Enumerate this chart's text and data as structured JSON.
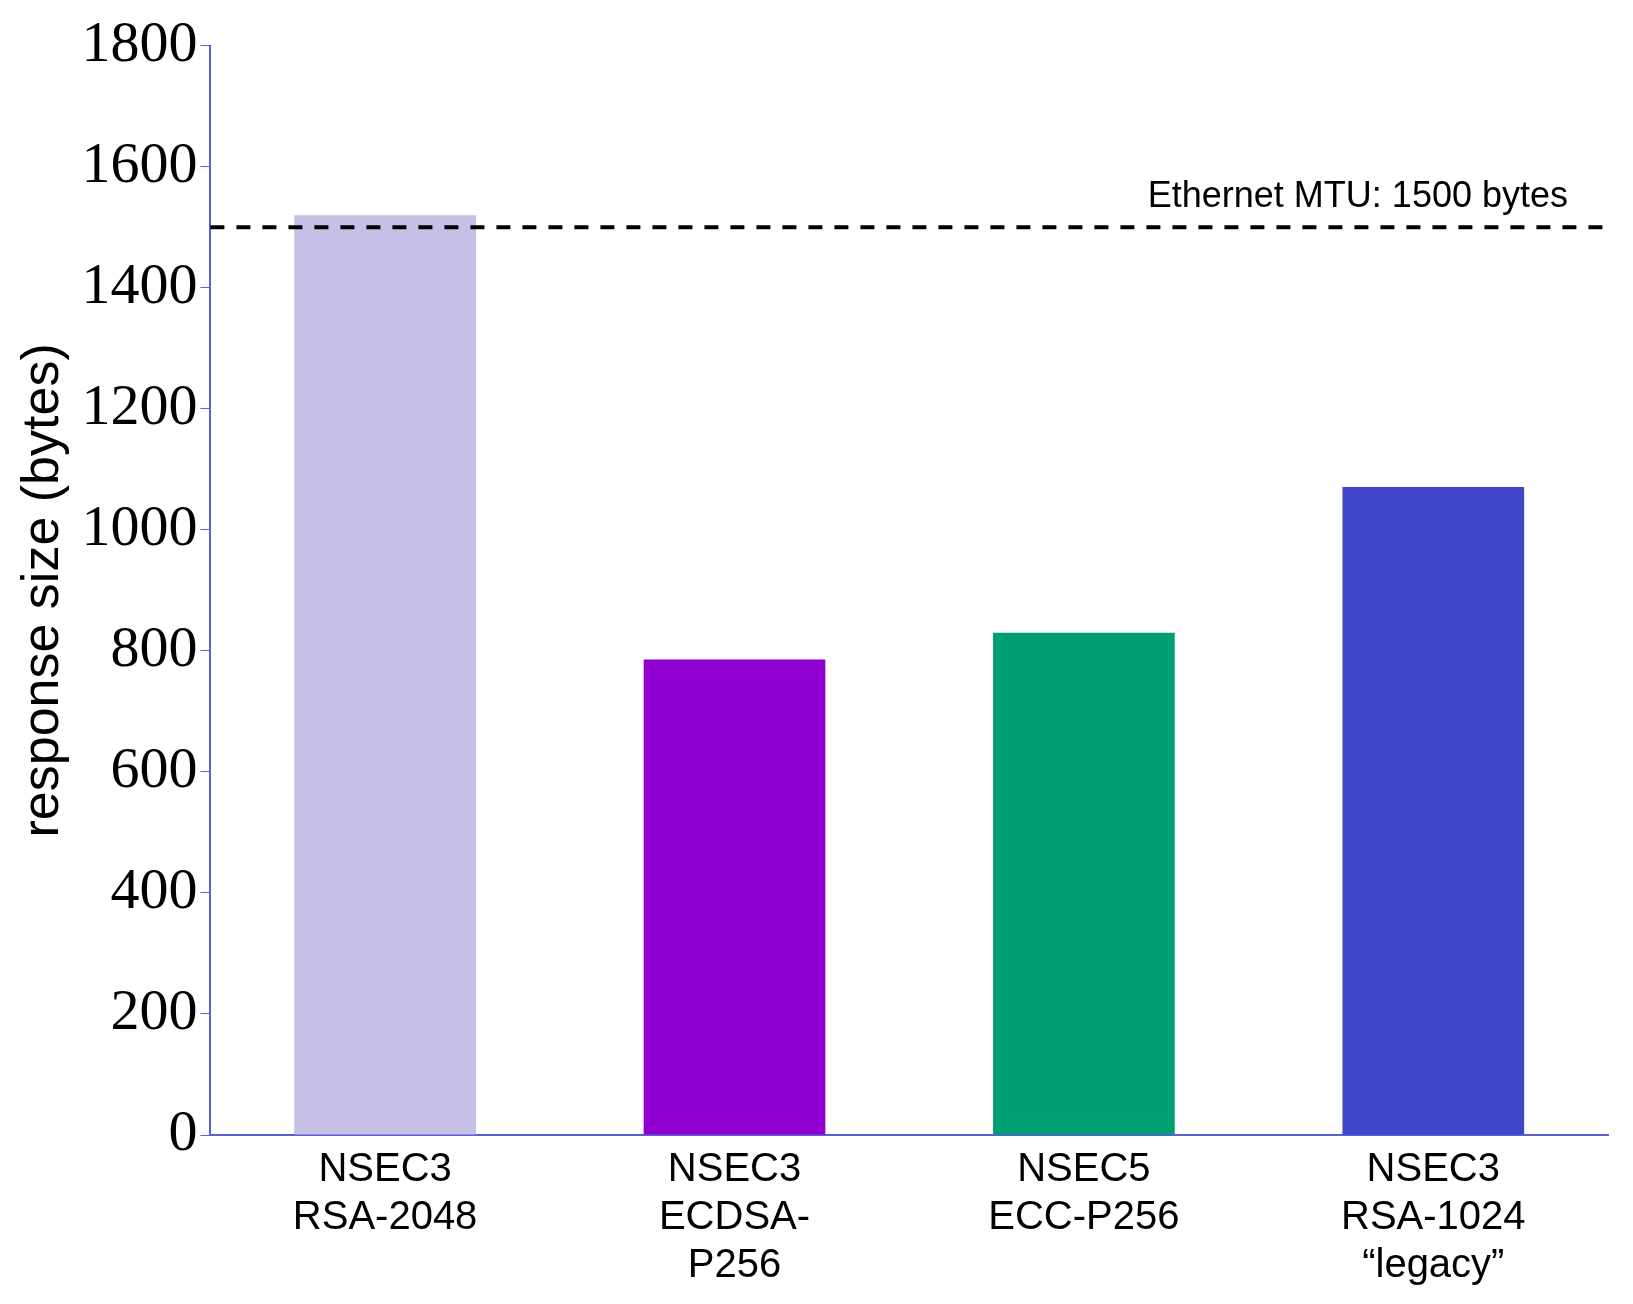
{
  "chart_data": {
    "type": "bar",
    "ylabel": "response size (bytes)",
    "categories": [
      "NSEC3\nRSA-2048",
      "NSEC3\nECDSA-\nP256",
      "NSEC5\nECC-P256",
      "NSEC3\nRSA-1024\n“legacy”"
    ],
    "values": [
      1520,
      786,
      830,
      1071
    ],
    "colors": [
      "#c6bfe6",
      "#9000d0",
      "#009e73",
      "#4047c8"
    ],
    "ylim": [
      0,
      1800
    ],
    "yticks": [
      0,
      200,
      400,
      600,
      800,
      1000,
      1200,
      1400,
      1600,
      1800
    ],
    "ref_lines": [
      {
        "axis": "y",
        "value": 1500,
        "label": "Ethernet MTU: 1500 bytes",
        "color": "#000000",
        "line_style": "dashed"
      }
    ],
    "grid": false,
    "legend": false
  }
}
